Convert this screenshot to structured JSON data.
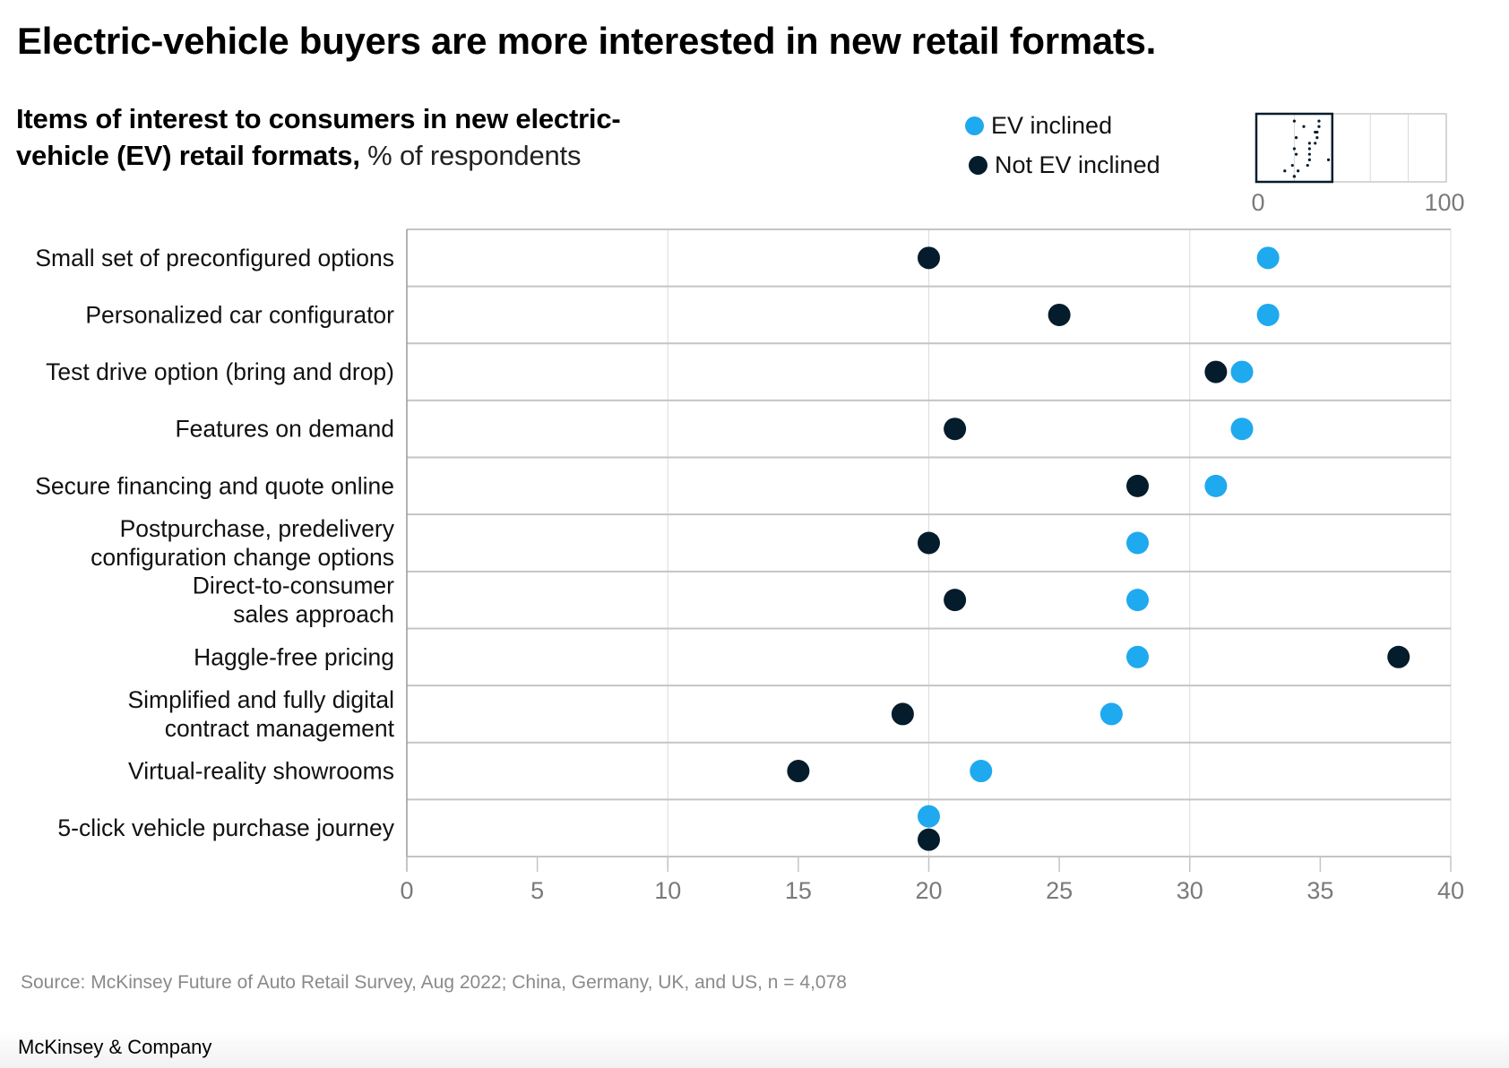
{
  "header": {
    "title": "Electric-vehicle buyers are more interested in new retail formats.",
    "subtitle_bold": "Items of interest to consumers in new electric-vehicle (EV) retail formats,",
    "subtitle_unit": " % of respondents"
  },
  "legend": {
    "items": [
      {
        "label": "EV inclined",
        "color": "#1fa9ef"
      },
      {
        "label": "Not EV inclined",
        "color": "#051c2c"
      }
    ]
  },
  "minimap": {
    "range": [
      0,
      100
    ],
    "tick_labels": [
      "0",
      "100"
    ],
    "highlight_range": [
      0,
      40
    ],
    "gridlines": [
      20,
      60,
      80
    ]
  },
  "chart_data": {
    "type": "scatter",
    "subtype": "dot-plot",
    "title": "Items of interest to consumers in new electric-vehicle (EV) retail formats, % of respondents",
    "xlabel": "",
    "ylabel": "",
    "xlim": [
      0,
      40
    ],
    "x_ticks": [
      0,
      5,
      10,
      15,
      20,
      25,
      30,
      35,
      40
    ],
    "x_tick_labels": [
      "0",
      "5",
      "10",
      "15",
      "20",
      "25",
      "30",
      "35",
      "40"
    ],
    "x_gridlines": [
      10,
      20,
      30,
      40
    ],
    "grid": true,
    "legend_position": "top-right",
    "categories": [
      [
        "Small set of preconfigured options"
      ],
      [
        "Personalized car configurator"
      ],
      [
        "Test drive option (bring and drop)"
      ],
      [
        "Features on demand"
      ],
      [
        "Secure financing and quote online"
      ],
      [
        "Postpurchase, predelivery",
        "configuration change options"
      ],
      [
        "Direct-to-consumer",
        "sales approach"
      ],
      [
        "Haggle-free pricing"
      ],
      [
        "Simplified and fully digital",
        "contract management"
      ],
      [
        "Virtual-reality showrooms"
      ],
      [
        "5-click vehicle purchase journey"
      ]
    ],
    "series": [
      {
        "name": "EV inclined",
        "color": "#1fa9ef",
        "values": [
          33,
          33,
          32,
          32,
          31,
          28,
          28,
          28,
          27,
          22,
          20
        ]
      },
      {
        "name": "Not EV inclined",
        "color": "#051c2c",
        "values": [
          20,
          25,
          31,
          21,
          28,
          20,
          21,
          38,
          19,
          15,
          20
        ]
      }
    ]
  },
  "source": "Source: McKinsey Future of Auto Retail Survey, Aug 2022; China, Germany, UK, and US, n = 4,078",
  "footer": "McKinsey & Company"
}
